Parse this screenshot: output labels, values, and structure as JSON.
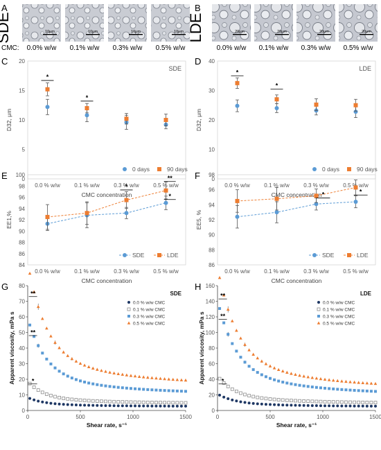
{
  "panel_letters": {
    "A": "A",
    "B": "B",
    "C": "C",
    "D": "D",
    "E": "E",
    "F": "F",
    "G": "G",
    "H": "H"
  },
  "micrographs": {
    "A": {
      "side_label": "SDE",
      "row_label": "CMC:",
      "captions": [
        "0.0% w/w",
        "0.1% w/w",
        "0.3% w/w",
        "0.5% w/w"
      ],
      "scale_bars": [
        "10μm",
        "10μm",
        "10μm",
        "10μm"
      ]
    },
    "B": {
      "side_label": "LDE",
      "captions": [
        "0.0% w/w",
        "0.1% w/w",
        "0.3% w/w",
        "0.5% w/w"
      ],
      "scale_bars": [
        "20μm",
        "20μm",
        "20μm",
        "20μm"
      ]
    }
  },
  "colors": {
    "day0": "#5b9bd5",
    "day90": "#ed7d31",
    "sde": "#5b9bd5",
    "lde": "#ed7d31",
    "visc": [
      "#1f3864",
      "#a6a6a6",
      "#5b9bd5",
      "#ed7d31"
    ]
  },
  "chart_data": [
    {
      "panel": "C",
      "type": "scatter",
      "tag": "SDE",
      "categories": [
        "0.0 % w/w",
        "0.1 % w/w",
        "0.3 % w/w",
        "0.5 % w/w"
      ],
      "ylabel": "D32, μm",
      "xlabel": "CMC concentration",
      "ylim": [
        0,
        20
      ],
      "yticks": [
        0,
        5,
        10,
        15,
        20
      ],
      "legend": "bottom-right",
      "series": [
        {
          "name": "0 days",
          "values": [
            12.2,
            10.8,
            9.6,
            9.2
          ],
          "err": [
            1.3,
            1.1,
            1.2,
            0.7
          ]
        },
        {
          "name": "90 days",
          "values": [
            15.2,
            12.0,
            10.2,
            10.0
          ],
          "err": [
            1.1,
            0.8,
            0.9,
            1.0
          ]
        }
      ],
      "sig": [
        {
          "idx": 0,
          "y": 16.7,
          "label": "*"
        },
        {
          "idx": 1,
          "y": 13.2,
          "label": "*"
        }
      ]
    },
    {
      "panel": "D",
      "type": "scatter",
      "tag": "LDE",
      "categories": [
        "0.0 % w/w",
        "0.1 % w/w",
        "0.3 % w/w",
        "0.5 % w/w"
      ],
      "ylabel": "D32, μm",
      "xlabel": "CMC concentration",
      "ylim": [
        0,
        40
      ],
      "yticks": [
        0,
        10,
        20,
        30,
        40
      ],
      "legend": "bottom-right",
      "series": [
        {
          "name": "0 days",
          "values": [
            24.8,
            24.0,
            23.2,
            22.8
          ],
          "err": [
            2.0,
            1.5,
            1.5,
            2.0
          ]
        },
        {
          "name": "90 days",
          "values": [
            32.5,
            27.0,
            25.2,
            25.0
          ],
          "err": [
            1.8,
            1.5,
            2.0,
            2.0
          ]
        }
      ],
      "sig": [
        {
          "idx": 0,
          "y": 35.0,
          "label": "*"
        },
        {
          "idx": 1,
          "y": 30.5,
          "label": "*"
        }
      ]
    },
    {
      "panel": "E",
      "type": "line",
      "categories": [
        "0.0 % w/w",
        "0.1 % w/w",
        "0.3 % w/w",
        "0.5 % w/w"
      ],
      "ylabel": "EE1,%",
      "xlabel": "CMC concentration",
      "ylim": [
        84,
        100
      ],
      "yticks": [
        84,
        86,
        88,
        90,
        92,
        94,
        96,
        98,
        100
      ],
      "legend": "bottom-right",
      "series": [
        {
          "name": "SDE",
          "values": [
            91.3,
            92.8,
            93.2,
            95.0
          ],
          "err": [
            1.2,
            2.2,
            1.0,
            1.2
          ]
        },
        {
          "name": "LDE",
          "values": [
            92.5,
            93.2,
            95.5,
            97.2
          ],
          "err": [
            2.2,
            2.0,
            1.5,
            1.5
          ]
        }
      ],
      "sig": [
        {
          "x0": 2,
          "x1": 2,
          "y": 97.3,
          "label": "*"
        },
        {
          "x0": 2.95,
          "x1": 3.25,
          "y": 98.8,
          "label": "**"
        },
        {
          "x0": 2.95,
          "x1": 3.25,
          "y": 95.6,
          "label": "*"
        }
      ]
    },
    {
      "panel": "F",
      "type": "line",
      "categories": [
        "0.0 % w/w",
        "0.1 % w/w",
        "0.3 % w/w",
        "0.5 % w/w"
      ],
      "ylabel": "EE5, %",
      "xlabel": "CMC concentration",
      "ylim": [
        86,
        98
      ],
      "yticks": [
        86,
        88,
        90,
        92,
        94,
        96,
        98
      ],
      "legend": "bottom-right",
      "series": [
        {
          "name": "SDE",
          "values": [
            92.4,
            93.0,
            94.1,
            94.4
          ],
          "err": [
            1.5,
            1.4,
            0.8,
            0.8
          ]
        },
        {
          "name": "LDE",
          "values": [
            94.5,
            94.8,
            95.2,
            96.3
          ],
          "err": [
            1.5,
            1.5,
            0.9,
            1.0
          ]
        }
      ],
      "sig": [
        {
          "x0": 2,
          "x1": 2.35,
          "y": 94.9,
          "label": "*"
        },
        {
          "x0": 2.95,
          "x1": 3.3,
          "y": 95.3,
          "label": "*"
        }
      ]
    },
    {
      "panel": "G",
      "type": "scatter",
      "tag": "SDE",
      "xlabel": "Shear rate, s⁻¹",
      "ylabel": "Apparent viscosity, mPa s",
      "xlim": [
        0,
        1500
      ],
      "ylim": [
        0,
        80
      ],
      "xticks": [
        0,
        500,
        1000,
        1500
      ],
      "yticks": [
        0,
        10,
        20,
        30,
        40,
        50,
        60,
        70,
        80
      ],
      "legend": "top-right",
      "series": [
        {
          "name": "0.0 % w/w CMC",
          "a": 2.6,
          "b": 4.2,
          "c": 150
        },
        {
          "name": "0.1 % w/w CMC",
          "a": 4.5,
          "b": 10.5,
          "c": 150
        },
        {
          "name": "0.3 % w/w CMC",
          "a": 10.5,
          "b": 36,
          "c": 170
        },
        {
          "name": "0.5 % w/w CMC",
          "a": 16.5,
          "b": 58,
          "c": 170
        }
      ],
      "sig": [
        {
          "x": 50,
          "y": 73,
          "label": "**"
        },
        {
          "x": 50,
          "y": 48,
          "label": "**"
        },
        {
          "x": 50,
          "y": 17,
          "label": "*"
        }
      ]
    },
    {
      "panel": "H",
      "type": "scatter",
      "tag": "LDE",
      "xlabel": "Shear rate, s⁻¹",
      "ylabel": "Apparent viscosity, mPa s",
      "xlim": [
        0,
        1500
      ],
      "ylim": [
        0,
        160
      ],
      "xticks": [
        0,
        500,
        1000,
        1500
      ],
      "yticks": [
        0,
        20,
        40,
        60,
        80,
        100,
        120,
        140,
        160
      ],
      "legend": "top-right",
      "series": [
        {
          "name": "0.0 % w/w CMC",
          "a": 5,
          "b": 12,
          "c": 160
        },
        {
          "name": "0.1 % w/w CMC",
          "a": 9,
          "b": 26,
          "c": 160
        },
        {
          "name": "0.3 % w/w CMC",
          "a": 20,
          "b": 90,
          "c": 170
        },
        {
          "name": "0.5 % w/w CMC",
          "a": 28,
          "b": 115,
          "c": 180
        }
      ],
      "sig": [
        {
          "x": 50,
          "y": 143,
          "label": "**"
        },
        {
          "x": 50,
          "y": 117,
          "label": "**"
        },
        {
          "x": 50,
          "y": 34,
          "label": "*"
        }
      ]
    }
  ]
}
